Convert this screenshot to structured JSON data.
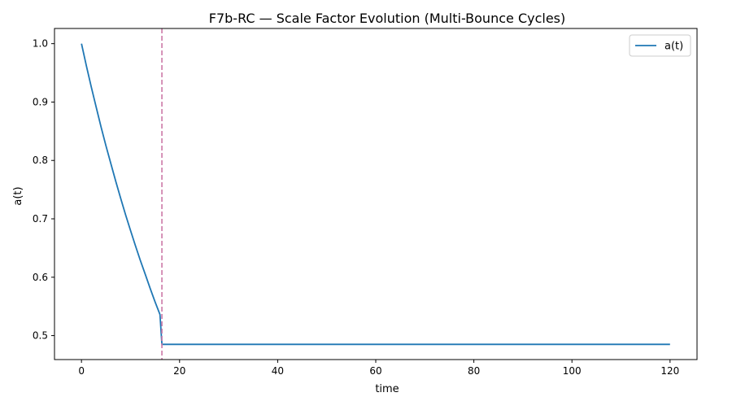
{
  "chart_data": {
    "type": "line",
    "title": "F7b-RC — Scale Factor Evolution (Multi-Bounce Cycles)",
    "xlabel": "time",
    "ylabel": "a(t)",
    "xlim": [
      -5.5,
      125.5
    ],
    "ylim": [
      0.459,
      1.026
    ],
    "xticks": [
      0,
      20,
      40,
      60,
      80,
      100,
      120
    ],
    "yticks": [
      0.5,
      0.6,
      0.7,
      0.8,
      0.9,
      1.0
    ],
    "xtick_labels": [
      "0",
      "20",
      "40",
      "60",
      "80",
      "100",
      "120"
    ],
    "ytick_labels": [
      "0.5",
      "0.6",
      "0.7",
      "0.8",
      "0.9",
      "1.0"
    ],
    "grid": false,
    "legend": {
      "position": "top-right",
      "entries": [
        "a(t)"
      ]
    },
    "series": [
      {
        "name": "a(t)",
        "color": "#1f77b4",
        "x": [
          0,
          1,
          2,
          3,
          4,
          5,
          6,
          7,
          8,
          9,
          10,
          11,
          12,
          13,
          14,
          15,
          16,
          16.4,
          20,
          40,
          60,
          80,
          100,
          120
        ],
        "y": [
          1.0,
          0.962,
          0.926,
          0.891,
          0.857,
          0.825,
          0.794,
          0.764,
          0.735,
          0.707,
          0.68,
          0.654,
          0.629,
          0.605,
          0.581,
          0.558,
          0.536,
          0.485,
          0.485,
          0.485,
          0.485,
          0.485,
          0.485,
          0.485
        ]
      }
    ],
    "annotations": [
      {
        "type": "vline",
        "x": 16.4,
        "color": "#cc79a7",
        "style": "dashed"
      }
    ]
  }
}
